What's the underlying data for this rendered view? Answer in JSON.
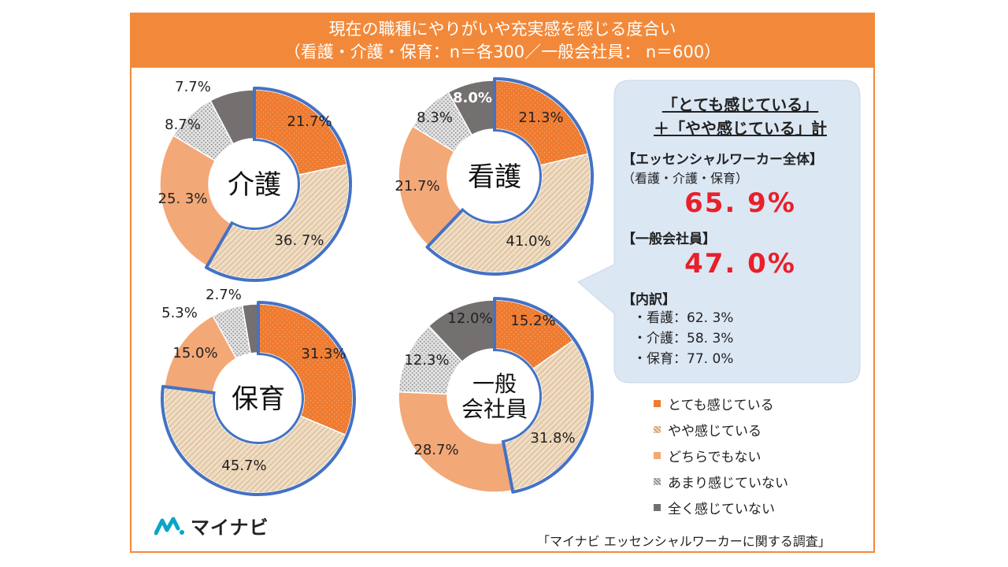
{
  "header": {
    "title_line1": "現在の職種にやりがいや充実感を感じる度合い",
    "title_line2": "（看護・介護・保育：n＝各300／一般会社員： n＝600）"
  },
  "colors": {
    "orange": "#ee7b30",
    "tan": "#e9d2b4",
    "salmon": "#f3a877",
    "gray_light": "#cfcfcf",
    "gray_dark": "#747070",
    "outline": "#4472c4",
    "frame": "#f2893a",
    "bubble": "#dce7f4",
    "highlight_red": "#e8202a"
  },
  "legend": [
    {
      "label": "とても感じている",
      "color": "#ee7b30"
    },
    {
      "label": "やや感じている",
      "color": "#e9d2b4"
    },
    {
      "label": "どちらでもない",
      "color": "#f3a877"
    },
    {
      "label": "あまり感じていない",
      "color": "#cfcfcf"
    },
    {
      "label": "全く感じていない",
      "color": "#747070"
    }
  ],
  "chart_data": [
    {
      "type": "pie",
      "title": "介護",
      "categories": [
        "とても感じている",
        "やや感じている",
        "どちらでもない",
        "あまり感じていない",
        "全く感じていない"
      ],
      "values": [
        21.7,
        36.7,
        25.3,
        8.7,
        7.7
      ],
      "labels": [
        "21.7%",
        "36. 7%",
        "25. 3%",
        "8.7%",
        "7.7%"
      ]
    },
    {
      "type": "pie",
      "title": "看護",
      "categories": [
        "とても感じている",
        "やや感じている",
        "どちらでもない",
        "あまり感じていない",
        "全く感じていない"
      ],
      "values": [
        21.3,
        41.0,
        21.7,
        8.3,
        8.0
      ],
      "labels": [
        "21.3%",
        "41.0%",
        "21.7%",
        "8.3%",
        "8.0%"
      ]
    },
    {
      "type": "pie",
      "title": "保育",
      "categories": [
        "とても感じている",
        "やや感じている",
        "どちらでもない",
        "あまり感じていない",
        "全く感じていない"
      ],
      "values": [
        31.3,
        45.7,
        15.0,
        5.3,
        2.7
      ],
      "labels": [
        "31.3%",
        "45.7%",
        "15.0%",
        "5.3%",
        "2.7%"
      ]
    },
    {
      "type": "pie",
      "title": "一般会社員",
      "title_lines": [
        "一般",
        "会社員"
      ],
      "categories": [
        "とても感じている",
        "やや感じている",
        "どちらでもない",
        "あまり感じていない",
        "全く感じていない"
      ],
      "values": [
        15.2,
        31.8,
        28.7,
        12.3,
        12.0
      ],
      "labels": [
        "15.2%",
        "31.8%",
        "28.7%",
        "12.3%",
        "12.0%"
      ]
    }
  ],
  "summary": {
    "heading_line1": "「とても感じている」",
    "heading_line2": "＋「やや感じている」計",
    "essential_label": "【エッセンシャルワーカー全体】",
    "essential_sub": "（看護・介護・保育）",
    "essential_value": "65. 9%",
    "office_label": "【一般会社員】",
    "office_value": "47. 0%",
    "breakdown_label": "【内訳】",
    "breakdown": [
      "・看護：62. 3%",
      "・介護：58. 3%",
      "・保育：77. 0%"
    ]
  },
  "brand": {
    "logo_text": "マイナビ"
  },
  "source": "「マイナビ エッセンシャルワーカーに関する調査」"
}
